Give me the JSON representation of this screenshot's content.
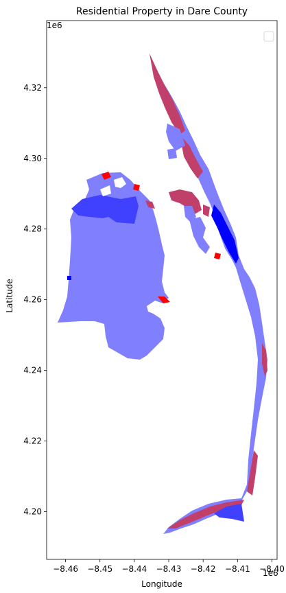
{
  "chart_data": {
    "type": "map",
    "title": "Residential Property in Dare County",
    "xlabel": "Longitude",
    "ylabel": "Latitude",
    "x_offset_text": "1e6",
    "y_offset_text": "1e6",
    "xlim": [
      -8.4655,
      -8.3985
    ],
    "ylim": [
      4.1865,
      4.339
    ],
    "xticks": [
      -8.46,
      -8.45,
      -8.44,
      -8.43,
      -8.42,
      -8.41,
      -8.4
    ],
    "xtick_labels": [
      "−8.46",
      "−8.45",
      "−8.44",
      "−8.43",
      "−8.42",
      "−8.41",
      "−8.40"
    ],
    "yticks": [
      4.2,
      4.22,
      4.24,
      4.26,
      4.28,
      4.3,
      4.32
    ],
    "ytick_labels": [
      "4.20",
      "4.22",
      "4.24",
      "4.26",
      "4.28",
      "4.30",
      "4.32"
    ],
    "legend": {
      "placement": "top-right",
      "entries": []
    },
    "colors": {
      "base_parcels": "#8080ff",
      "dense_residential": "#c0406a",
      "dark_blue": "#0000ff",
      "mid_blue": "#4040ff",
      "red": "#ff0000"
    }
  }
}
